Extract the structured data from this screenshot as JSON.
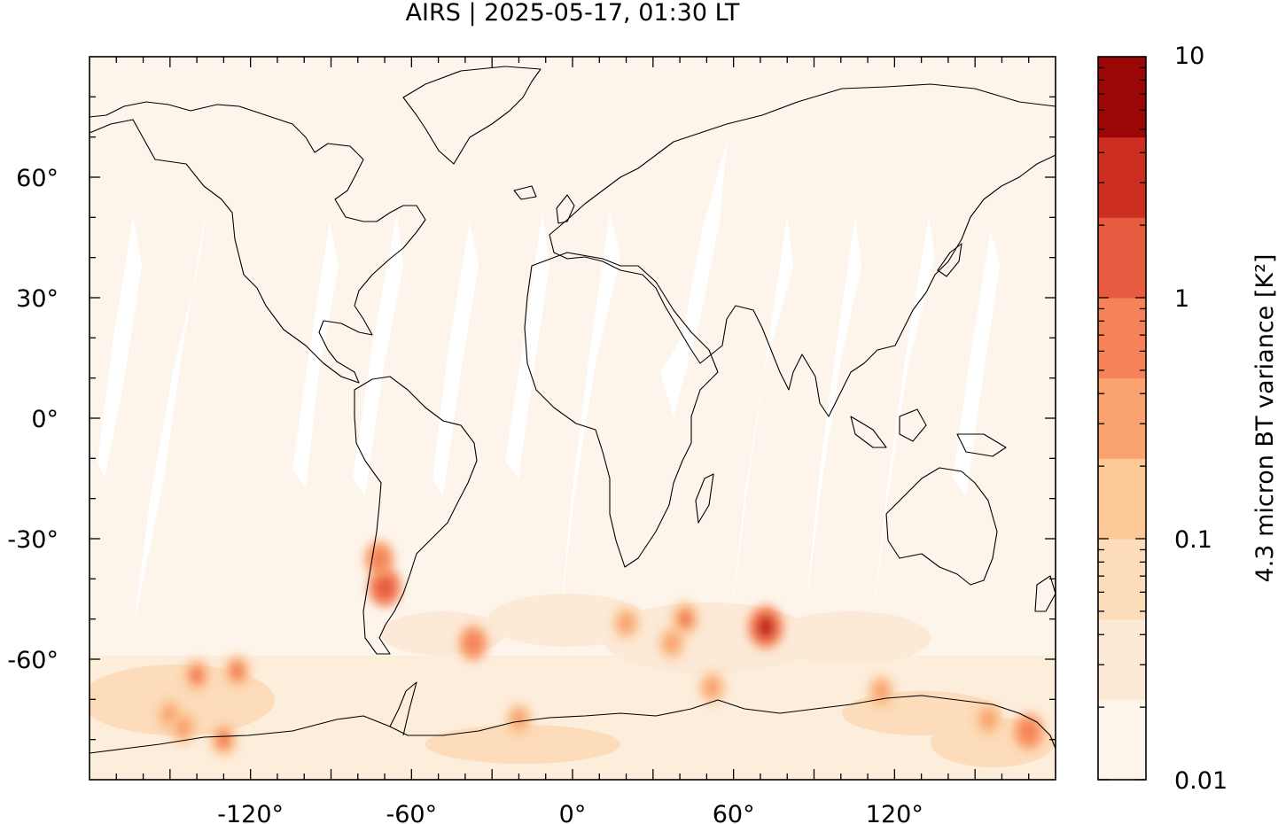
{
  "chart_data": {
    "type": "heatmap",
    "title": "AIRS | 2025-05-17, 01:30 LT",
    "xlim": [
      -180,
      180
    ],
    "ylim": [
      -90,
      90
    ],
    "x_ticks": [
      {
        "value": -120,
        "label": "-120°"
      },
      {
        "value": -60,
        "label": "-60°"
      },
      {
        "value": 0,
        "label": "0°"
      },
      {
        "value": 60,
        "label": "60°"
      },
      {
        "value": 120,
        "label": "120°"
      }
    ],
    "y_ticks": [
      {
        "value": 60,
        "label": "60°"
      },
      {
        "value": 30,
        "label": "30°"
      },
      {
        "value": 0,
        "label": "0°"
      },
      {
        "value": -30,
        "label": "-30°"
      },
      {
        "value": -60,
        "label": "-60°"
      }
    ],
    "colorbar": {
      "label": "4.3 micron BT variance [K²]",
      "scale": "log",
      "range": [
        0.01,
        10
      ],
      "tick_labels": [
        {
          "value": 10,
          "label": "10"
        },
        {
          "value": 1,
          "label": "1"
        },
        {
          "value": 0.1,
          "label": "0.1"
        },
        {
          "value": 0.01,
          "label": "0.01"
        }
      ],
      "levels": [
        "#fdf5eb",
        "#fce9d6",
        "#fcdcba",
        "#fbc896",
        "#faa270",
        "#f58258",
        "#e75c40",
        "#cc2e20",
        "#9b0606"
      ]
    },
    "hotspots": [
      {
        "lon": -70,
        "lat": -42,
        "value": 1.5
      },
      {
        "lon": -72,
        "lat": -35,
        "value": 0.8
      },
      {
        "lon": 72,
        "lat": -52,
        "value": 2.5
      },
      {
        "lon": 42,
        "lat": -50,
        "value": 0.6
      },
      {
        "lon": -37,
        "lat": -56,
        "value": 0.7
      },
      {
        "lon": 20,
        "lat": -51,
        "value": 0.4
      },
      {
        "lon": 37,
        "lat": -56,
        "value": 0.4
      },
      {
        "lon": -140,
        "lat": -64,
        "value": 0.5
      },
      {
        "lon": -125,
        "lat": -63,
        "value": 0.5
      },
      {
        "lon": -150,
        "lat": -74,
        "value": 0.4
      },
      {
        "lon": -130,
        "lat": -80,
        "value": 0.5
      },
      {
        "lon": -145,
        "lat": -77,
        "value": 0.45
      },
      {
        "lon": 115,
        "lat": -68,
        "value": 0.4
      },
      {
        "lon": 170,
        "lat": -78,
        "value": 0.9
      },
      {
        "lon": 155,
        "lat": -75,
        "value": 0.4
      },
      {
        "lon": 52,
        "lat": -67,
        "value": 0.4
      },
      {
        "lon": -20,
        "lat": -75,
        "value": 0.35
      }
    ]
  }
}
